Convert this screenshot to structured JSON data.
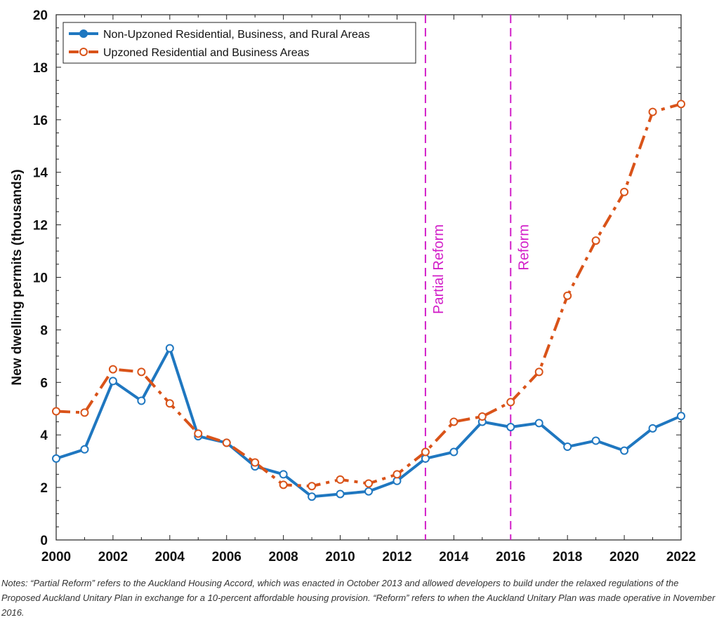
{
  "chart_data": {
    "type": "line",
    "title": "",
    "xlabel": "",
    "ylabel": "New dwelling permits (thousands)",
    "xlim": [
      2000,
      2022
    ],
    "ylim": [
      0,
      20
    ],
    "xticks": [
      2000,
      2002,
      2004,
      2006,
      2008,
      2010,
      2012,
      2014,
      2016,
      2018,
      2020,
      2022
    ],
    "yticks": [
      0,
      2,
      4,
      6,
      8,
      10,
      12,
      14,
      16,
      18,
      20
    ],
    "grid": false,
    "legend_position": "top-left",
    "x": [
      2000,
      2001,
      2002,
      2003,
      2004,
      2005,
      2006,
      2007,
      2008,
      2009,
      2010,
      2011,
      2012,
      2013,
      2014,
      2015,
      2016,
      2017,
      2018,
      2019,
      2020,
      2021,
      2022
    ],
    "series": [
      {
        "name": "Non-Upzoned Residential, Business, and Rural Areas",
        "color": "#1f77c0",
        "style": "solid",
        "values": [
          3.1,
          3.45,
          6.05,
          5.3,
          7.3,
          3.95,
          3.7,
          2.8,
          2.5,
          1.65,
          1.75,
          1.85,
          2.25,
          3.1,
          3.35,
          4.5,
          4.3,
          4.45,
          3.55,
          3.78,
          3.4,
          4.25,
          4.72
        ]
      },
      {
        "name": "Upzoned Residential and Business Areas",
        "color": "#d95319",
        "style": "dash-dot",
        "values": [
          4.9,
          4.85,
          6.5,
          6.4,
          5.2,
          4.05,
          3.7,
          2.95,
          2.1,
          2.05,
          2.3,
          2.15,
          2.5,
          3.35,
          4.5,
          4.7,
          5.25,
          6.4,
          9.3,
          11.4,
          13.25,
          16.3,
          16.6
        ]
      }
    ],
    "events": [
      {
        "x": 2013,
        "label": "Partial Reform",
        "color": "#d21fc8"
      },
      {
        "x": 2016,
        "label": "Reform",
        "color": "#d21fc8"
      }
    ]
  },
  "notes": "Notes: “Partial Reform” refers to the Auckland Housing Accord, which was enacted in October 2013 and allowed developers to build under the relaxed regulations of the Proposed Auckland Unitary Plan in exchange for a 10-percent affordable housing provision. “Reform” refers to when the Auckland Unitary Plan was made operative in November 2016."
}
